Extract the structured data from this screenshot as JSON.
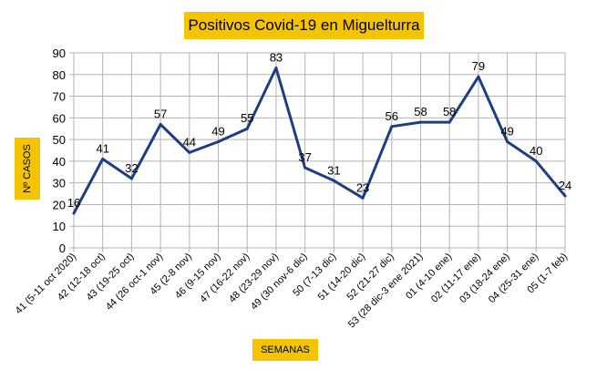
{
  "chart_data": {
    "type": "line",
    "title": "Positivos Covid-19 en Miguelturra",
    "xlabel": "SEMANAS",
    "ylabel": "Nº CASOS",
    "ylim": [
      0,
      90
    ],
    "yticks": [
      0,
      10,
      20,
      30,
      40,
      50,
      60,
      70,
      80,
      90
    ],
    "grid": true,
    "legend": "none",
    "categories": [
      "41 (5-11 oct 2020)",
      "42 (12-18 oct)",
      "43 (19-25 oct)",
      "44 (26 oct-1 nov)",
      "45 (2-8 nov)",
      "46 (9-15 nov)",
      "47 (16-22 nov)",
      "48 (23-29 nov)",
      "49 (30 nov-6 dic)",
      "50 (7-13 dic)",
      "51 (14-20 dic)",
      "52 (21-27 dic)",
      "53 (28 dic-3 ene 2021)",
      "01 (4-10 ene)",
      "02 (11-17 ene)",
      "03 (18-24 ene)",
      "04 (25-31 ene)",
      "05 (1-7 feb)"
    ],
    "values": [
      16,
      41,
      32,
      57,
      44,
      49,
      55,
      83,
      37,
      31,
      23,
      56,
      58,
      58,
      79,
      49,
      40,
      24
    ],
    "line_color": "#1f3d82",
    "highlight_color": "#f5c400"
  }
}
